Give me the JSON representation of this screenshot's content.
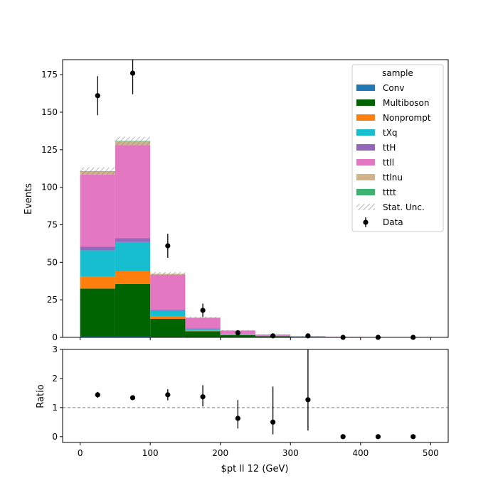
{
  "chart_data": [
    {
      "type": "bar",
      "stacked": true,
      "ylabel": "Events",
      "ylim": [
        0,
        185
      ],
      "yticks": [
        0,
        25,
        50,
        75,
        100,
        125,
        150,
        175
      ],
      "bin_edges": [
        0,
        50,
        100,
        150,
        200,
        250,
        300,
        350,
        400,
        450,
        500
      ],
      "legend": {
        "title": "sample",
        "placement": "top-right"
      },
      "series": [
        {
          "name": "Conv",
          "color": "#1f77b4",
          "values": [
            0.5,
            0.5,
            0.3,
            0.1,
            0,
            0,
            0,
            0,
            0,
            0
          ]
        },
        {
          "name": "Multiboson",
          "color": "#006400",
          "values": [
            32,
            35,
            12,
            4,
            1.5,
            0.8,
            0.3,
            0.2,
            0.2,
            0.2
          ]
        },
        {
          "name": "Nonprompt",
          "color": "#ff7f0e",
          "values": [
            8,
            8.5,
            1.5,
            0.5,
            0.2,
            0.1,
            0,
            0,
            0,
            0
          ]
        },
        {
          "name": "tXq",
          "color": "#17becf",
          "values": [
            17.5,
            19.5,
            4,
            1,
            0.3,
            0.1,
            0.1,
            0,
            0,
            0
          ]
        },
        {
          "name": "ttH",
          "color": "#9467bd",
          "values": [
            2.5,
            2.5,
            0.8,
            0.3,
            0.1,
            0.1,
            0,
            0,
            0,
            0
          ]
        },
        {
          "name": "ttll",
          "color": "#e377c2",
          "values": [
            48,
            62,
            23,
            7,
            2.4,
            0.8,
            0.4,
            0.1,
            0,
            0
          ]
        },
        {
          "name": "ttlnu",
          "color": "#d2b48c",
          "values": [
            2,
            2.5,
            0.6,
            0.2,
            0.1,
            0,
            0,
            0,
            0,
            0
          ]
        },
        {
          "name": "tttt",
          "color": "#3cb371",
          "values": [
            0.2,
            0.3,
            0.1,
            0.1,
            0,
            0,
            0,
            0,
            0,
            0
          ]
        }
      ],
      "stat_unc": {
        "name": "Stat. Unc.",
        "up": [
          2.5,
          2.8,
          1.2,
          0.6,
          0.3,
          0.2,
          0.1,
          0.1,
          0.05,
          0.05
        ]
      },
      "data_series": {
        "name": "Data",
        "x": [
          25,
          75,
          125,
          175,
          225,
          275,
          325,
          375,
          425,
          475
        ],
        "y": [
          161,
          176,
          61,
          18,
          3,
          1,
          1,
          0,
          0,
          0
        ],
        "err": [
          13,
          14,
          8,
          4.5,
          1.8,
          1,
          1,
          0,
          0,
          0
        ]
      }
    },
    {
      "type": "scatter",
      "ylabel": "Ratio",
      "xlabel": "$pt ll 12 (GeV)",
      "ylim": [
        -0.2,
        3
      ],
      "yticks": [
        0,
        1,
        2,
        3
      ],
      "xlim": [
        -25,
        525
      ],
      "xticks": [
        0,
        100,
        200,
        300,
        400,
        500
      ],
      "reference_line": 1,
      "x": [
        25,
        75,
        125,
        175,
        225,
        275,
        325,
        375,
        425,
        475
      ],
      "y": [
        1.44,
        1.34,
        1.44,
        1.37,
        0.63,
        0.5,
        1.27,
        0,
        0,
        0
      ],
      "err_low": [
        0.1,
        0.08,
        0.19,
        0.33,
        0.35,
        0.42,
        1.06,
        0,
        0,
        0
      ],
      "err_high": [
        0.1,
        0.08,
        0.19,
        0.4,
        0.63,
        1.22,
        1.73,
        0,
        0,
        0
      ]
    }
  ]
}
